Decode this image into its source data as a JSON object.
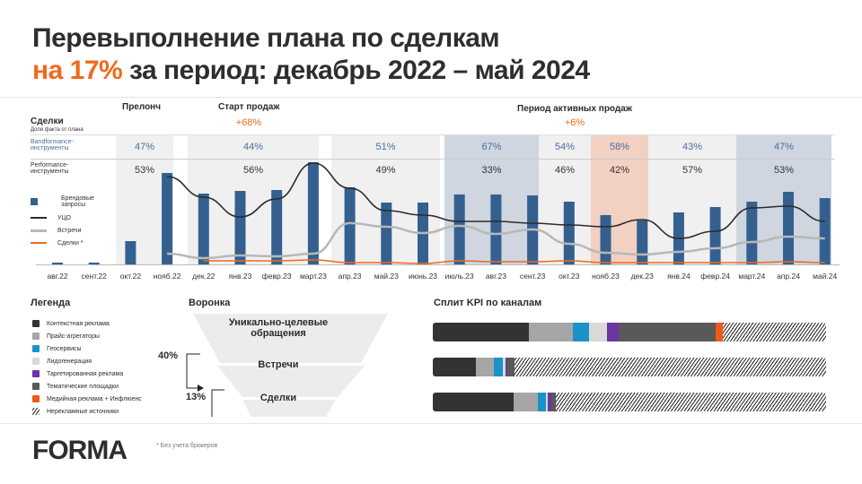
{
  "title_line1": "Перевыполнение плана по сделкам",
  "title_line2_accent": "на 17%",
  "title_line2_rest": " за период: декабрь 2022 – май 2024",
  "chart_header": {
    "title": "Сделки",
    "subtitle": "Доля факта от плана",
    "row1_label": "Bandformance-инструменты",
    "row2_label": "Performance-инструменты"
  },
  "phases": [
    {
      "label": "Прелонч",
      "pct": ""
    },
    {
      "label": "Старт продаж",
      "pct": "+68%"
    },
    {
      "label": "Период активных продаж",
      "pct": "+6%"
    }
  ],
  "periods": [
    {
      "band": "47%",
      "perf": "53%",
      "color": "#f0f0f0"
    },
    {
      "band": "44%",
      "perf": "56%",
      "color": "#f0f0f0"
    },
    {
      "band": "51%",
      "perf": "49%",
      "color": "#f0f0f0"
    },
    {
      "band": "67%",
      "perf": "33%",
      "color": "#cfd6e0"
    },
    {
      "band": "54%",
      "perf": "46%",
      "color": "#f0f0f0"
    },
    {
      "band": "58%",
      "perf": "42%",
      "color": "#f2d0c2"
    },
    {
      "band": "43%",
      "perf": "57%",
      "color": "#f0f0f0"
    },
    {
      "band": "47%",
      "perf": "53%",
      "color": "#cfd6e0"
    }
  ],
  "chart_legend": [
    "Брендовые запросы",
    "УЦО",
    "Встречи",
    "Сделки *"
  ],
  "colors": {
    "bars": "#34608f",
    "uco": "#2b2b2b",
    "meetings": "#b8b8b8",
    "deals": "#f06a1c",
    "accent": "#f06a1c",
    "blue_text": "#4a6fa0"
  },
  "chart_data": {
    "type": "bar+line",
    "title": "Сделки",
    "categories": [
      "авг.22",
      "сент.22",
      "окт.22",
      "нояб.22",
      "дек.22",
      "янв.23",
      "февр.23",
      "март.23",
      "апр.23",
      "май.23",
      "июнь.23",
      "июль.23",
      "авг.23",
      "сент.23",
      "окт.23",
      "нояб.23",
      "дек.23",
      "янв.24",
      "февр.24",
      "март.24",
      "апр.24",
      "май.24"
    ],
    "series": [
      {
        "name": "Брендовые запросы",
        "type": "bar",
        "values": [
          2,
          2,
          26,
          102,
          79,
          82,
          83,
          114,
          86,
          69,
          69,
          78,
          78,
          77,
          70,
          55,
          49,
          58,
          64,
          70,
          81,
          74
        ]
      },
      {
        "name": "УЦО",
        "type": "line",
        "values": [
          null,
          null,
          null,
          98,
          75,
          53,
          73,
          113,
          85,
          60,
          55,
          48,
          48,
          46,
          44,
          42,
          50,
          29,
          37,
          63,
          65,
          48
        ]
      },
      {
        "name": "Встречи",
        "type": "line",
        "values": [
          null,
          null,
          null,
          12,
          7,
          10,
          9,
          12,
          46,
          42,
          35,
          43,
          34,
          39,
          23,
          13,
          11,
          14,
          18,
          25,
          31,
          29
        ]
      },
      {
        "name": "Сделки *",
        "type": "line",
        "values": [
          null,
          null,
          null,
          null,
          4,
          4,
          4,
          5,
          2,
          2,
          1,
          4,
          3,
          3,
          4,
          2,
          2,
          2,
          2,
          2,
          3,
          2
        ]
      }
    ],
    "ylim": [
      0,
      120
    ]
  },
  "legend": {
    "title": "Легенда",
    "items": [
      {
        "label": "Контекстная реклама",
        "color": "#333333"
      },
      {
        "label": "Прайс-агрегаторы",
        "color": "#a6a6a6"
      },
      {
        "label": "Геосервисы",
        "color": "#1a93c8"
      },
      {
        "label": "Лидогенерация",
        "color": "#d9d9d9"
      },
      {
        "label": "Таргетированная реклама",
        "color": "#6b35a3"
      },
      {
        "label": "Тематические площадки",
        "color": "#595959"
      },
      {
        "label": "Медийная реклама + Инфлюенс",
        "color": "#f05a14"
      },
      {
        "label": "Нерекламные источники",
        "color": "hatch"
      }
    ]
  },
  "funnel": {
    "title": "Воронка",
    "stages": [
      "Уникально-целевые обращения",
      "Встречи",
      "Сделки"
    ],
    "conv1": "40%",
    "conv2": "13%"
  },
  "kpi": {
    "title": "Сплит KPI по каналам",
    "rows": [
      [
        24.4,
        11.2,
        4.1,
        4.6,
        3.0,
        24.7,
        1.8
      ],
      [
        11.0,
        4.6,
        2.3,
        0.5,
        0.3,
        2.0,
        0
      ],
      [
        20.5,
        6.2,
        2.0,
        0.5,
        1.0,
        1.0,
        0
      ]
    ]
  },
  "footer": {
    "logo": "FORMA",
    "note": "* Без учета брокеров"
  }
}
